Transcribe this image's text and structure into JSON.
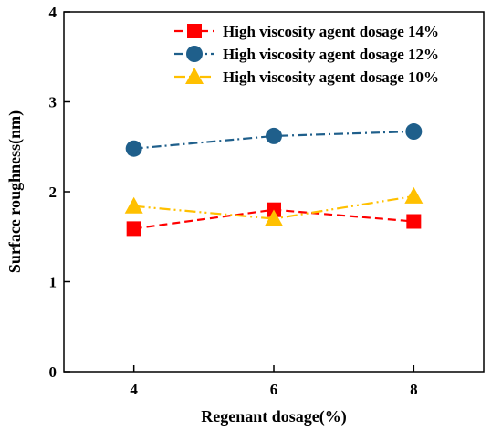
{
  "chart_data": {
    "type": "line",
    "title": "",
    "xlabel": "Regenant dosage(%)",
    "ylabel": "Surface roughness(nm)",
    "x": [
      4,
      6,
      8
    ],
    "xlim": [
      3,
      9
    ],
    "ylim": [
      0,
      4
    ],
    "xticks": [
      "4",
      "6",
      "8"
    ],
    "yticks": [
      "0",
      "1",
      "2",
      "3",
      "4"
    ],
    "grid": false,
    "legend_position": "top-right",
    "series": [
      {
        "name": "High viscosity agent dosage 14%",
        "values": [
          1.59,
          1.8,
          1.67
        ],
        "color": "#ff0000",
        "marker": "square",
        "dash": "dash"
      },
      {
        "name": "High viscosity agent dosage 12%",
        "values": [
          2.48,
          2.62,
          2.67
        ],
        "color": "#1f5f8b",
        "marker": "circle",
        "dash": "dashdot"
      },
      {
        "name": "High viscosity agent dosage 10%",
        "values": [
          1.84,
          1.7,
          1.95
        ],
        "color": "#ffc000",
        "marker": "triangle",
        "dash": "dashdotdot"
      }
    ]
  }
}
